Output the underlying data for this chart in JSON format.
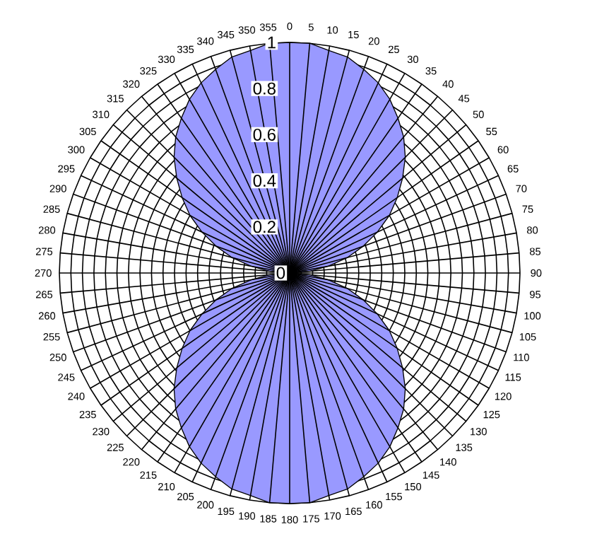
{
  "chart_data": {
    "type": "radar",
    "categories": [
      "0",
      "5",
      "10",
      "15",
      "20",
      "25",
      "30",
      "35",
      "40",
      "45",
      "50",
      "55",
      "60",
      "65",
      "70",
      "75",
      "80",
      "85",
      "90",
      "95",
      "100",
      "105",
      "110",
      "115",
      "120",
      "125",
      "130",
      "135",
      "140",
      "145",
      "150",
      "155",
      "160",
      "165",
      "170",
      "175",
      "180",
      "185",
      "190",
      "195",
      "200",
      "205",
      "210",
      "215",
      "220",
      "225",
      "230",
      "235",
      "240",
      "245",
      "250",
      "255",
      "260",
      "265",
      "270",
      "275",
      "280",
      "285",
      "290",
      "295",
      "300",
      "305",
      "310",
      "315",
      "320",
      "325",
      "330",
      "335",
      "340",
      "345",
      "350",
      "355"
    ],
    "series": [
      {
        "color": "#9999ff",
        "values": [
          1,
          1,
          0.98,
          0.97,
          0.94,
          0.91,
          0.87,
          0.82,
          0.77,
          0.71,
          0.64,
          0.57,
          0.5,
          0.42,
          0.34,
          0.26,
          0.17,
          0.09,
          0,
          0.09,
          0.17,
          0.26,
          0.34,
          0.42,
          0.5,
          0.57,
          0.64,
          0.71,
          0.77,
          0.82,
          0.87,
          0.91,
          0.94,
          0.97,
          0.98,
          1,
          1,
          1,
          0.98,
          0.97,
          0.94,
          0.91,
          0.87,
          0.82,
          0.77,
          0.71,
          0.64,
          0.57,
          0.5,
          0.42,
          0.34,
          0.26,
          0.17,
          0.09,
          0,
          0.09,
          0.17,
          0.26,
          0.34,
          0.42,
          0.5,
          0.57,
          0.64,
          0.71,
          0.77,
          0.82,
          0.87,
          0.91,
          0.94,
          0.97,
          0.98,
          1
        ]
      }
    ],
    "ylim": [
      0,
      1
    ],
    "yticks": [
      0,
      0.2,
      0.4,
      0.6,
      0.8,
      1
    ],
    "grid": true
  }
}
